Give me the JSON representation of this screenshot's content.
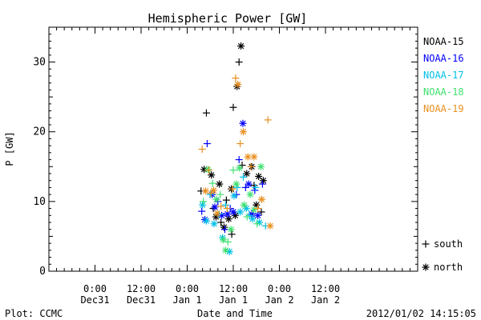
{
  "chart_data": {
    "type": "scatter",
    "title": "Hemispheric Power [GW]",
    "xlabel": "Date and Time",
    "ylabel": "P [GW]",
    "footer_left": "Plot: CCMC",
    "footer_right": "2012/01/02 14:15:05",
    "xlim_hours": [
      -36,
      60
    ],
    "ylim": [
      0,
      35
    ],
    "grid": false,
    "legend_position": "right",
    "x_ticks": [
      {
        "hours": -24,
        "line1": "0:00",
        "line2": "Dec31"
      },
      {
        "hours": -12,
        "line1": "12:00",
        "line2": "Dec31"
      },
      {
        "hours": 0,
        "line1": "0:00",
        "line2": "Jan 1"
      },
      {
        "hours": 12,
        "line1": "12:00",
        "line2": "Jan 1"
      },
      {
        "hours": 24,
        "line1": "0:00",
        "line2": "Jan 2"
      },
      {
        "hours": 36,
        "line1": "12:00",
        "line2": "Jan 2"
      }
    ],
    "y_ticks": [
      0,
      10,
      20,
      30
    ],
    "marker_legend": [
      {
        "symbol": "+",
        "label": "south"
      },
      {
        "symbol": "*",
        "label": "north"
      }
    ],
    "series": [
      {
        "name": "NOAA-15",
        "color": "#000000",
        "points": [
          {
            "x": 3.6,
            "y": 11.5,
            "m": "+"
          },
          {
            "x": 4.4,
            "y": 14.6,
            "m": "*"
          },
          {
            "x": 5.0,
            "y": 22.7,
            "m": "+"
          },
          {
            "x": 6.3,
            "y": 13.8,
            "m": "*"
          },
          {
            "x": 6.8,
            "y": 9.0,
            "m": "+"
          },
          {
            "x": 7.5,
            "y": 7.8,
            "m": "*"
          },
          {
            "x": 8.4,
            "y": 12.5,
            "m": "*"
          },
          {
            "x": 8.8,
            "y": 7.0,
            "m": "+"
          },
          {
            "x": 9.6,
            "y": 6.3,
            "m": "*"
          },
          {
            "x": 10.2,
            "y": 10.2,
            "m": "+"
          },
          {
            "x": 10.8,
            "y": 7.5,
            "m": "*"
          },
          {
            "x": 11.5,
            "y": 11.8,
            "m": "*"
          },
          {
            "x": 11.6,
            "y": 5.3,
            "m": "+"
          },
          {
            "x": 12.0,
            "y": 23.5,
            "m": "+"
          },
          {
            "x": 12.5,
            "y": 8.0,
            "m": "*"
          },
          {
            "x": 13.0,
            "y": 26.5,
            "m": "*"
          },
          {
            "x": 13.5,
            "y": 30.0,
            "m": "+"
          },
          {
            "x": 14.0,
            "y": 32.3,
            "m": "*"
          },
          {
            "x": 14.3,
            "y": 15.2,
            "m": "+"
          },
          {
            "x": 15.5,
            "y": 14.0,
            "m": "*"
          },
          {
            "x": 16.8,
            "y": 15.0,
            "m": "*"
          },
          {
            "x": 17.4,
            "y": 12.3,
            "m": "+"
          },
          {
            "x": 18.0,
            "y": 9.5,
            "m": "*"
          },
          {
            "x": 18.6,
            "y": 13.6,
            "m": "*"
          },
          {
            "x": 19.3,
            "y": 8.5,
            "m": "+"
          },
          {
            "x": 19.8,
            "y": 13.0,
            "m": "*"
          }
        ]
      },
      {
        "name": "NOAA-16",
        "color": "#0000ff",
        "points": [
          {
            "x": 3.8,
            "y": 8.6,
            "m": "+"
          },
          {
            "x": 4.6,
            "y": 7.4,
            "m": "*"
          },
          {
            "x": 5.2,
            "y": 18.3,
            "m": "+"
          },
          {
            "x": 6.5,
            "y": 11.0,
            "m": "*"
          },
          {
            "x": 7.2,
            "y": 9.2,
            "m": "*"
          },
          {
            "x": 8.0,
            "y": 10.0,
            "m": "+"
          },
          {
            "x": 9.0,
            "y": 8.0,
            "m": "*"
          },
          {
            "x": 9.8,
            "y": 6.0,
            "m": "+"
          },
          {
            "x": 10.5,
            "y": 8.2,
            "m": "*"
          },
          {
            "x": 11.2,
            "y": 9.0,
            "m": "+"
          },
          {
            "x": 12.0,
            "y": 8.5,
            "m": "*"
          },
          {
            "x": 12.8,
            "y": 11.0,
            "m": "+"
          },
          {
            "x": 13.5,
            "y": 16.0,
            "m": "+"
          },
          {
            "x": 14.5,
            "y": 21.2,
            "m": "*"
          },
          {
            "x": 15.2,
            "y": 12.0,
            "m": "+"
          },
          {
            "x": 16.0,
            "y": 12.5,
            "m": "*"
          },
          {
            "x": 16.8,
            "y": 8.2,
            "m": "*"
          },
          {
            "x": 17.6,
            "y": 11.6,
            "m": "+"
          },
          {
            "x": 18.4,
            "y": 8.0,
            "m": "*"
          },
          {
            "x": 19.6,
            "y": 12.5,
            "m": "+"
          }
        ]
      },
      {
        "name": "NOAA-17",
        "color": "#00c0e8",
        "points": [
          {
            "x": 4.0,
            "y": 9.5,
            "m": "*"
          },
          {
            "x": 5.0,
            "y": 7.2,
            "m": "*"
          },
          {
            "x": 6.0,
            "y": 11.0,
            "m": "+"
          },
          {
            "x": 7.0,
            "y": 6.8,
            "m": "*"
          },
          {
            "x": 8.3,
            "y": 8.2,
            "m": "+"
          },
          {
            "x": 9.2,
            "y": 4.8,
            "m": "*"
          },
          {
            "x": 10.0,
            "y": 9.5,
            "m": "+"
          },
          {
            "x": 11.0,
            "y": 2.8,
            "m": "*"
          },
          {
            "x": 12.2,
            "y": 10.8,
            "m": "*"
          },
          {
            "x": 13.0,
            "y": 12.0,
            "m": "+"
          },
          {
            "x": 13.8,
            "y": 8.5,
            "m": "*"
          },
          {
            "x": 14.6,
            "y": 13.5,
            "m": "+"
          },
          {
            "x": 15.4,
            "y": 9.0,
            "m": "*"
          },
          {
            "x": 16.2,
            "y": 8.0,
            "m": "+"
          },
          {
            "x": 17.0,
            "y": 7.5,
            "m": "*"
          },
          {
            "x": 17.8,
            "y": 12.0,
            "m": "+"
          },
          {
            "x": 18.8,
            "y": 7.0,
            "m": "*"
          },
          {
            "x": 20.4,
            "y": 6.5,
            "m": "+"
          }
        ]
      },
      {
        "name": "NOAA-18",
        "color": "#40e070",
        "points": [
          {
            "x": 4.2,
            "y": 10.0,
            "m": "+"
          },
          {
            "x": 5.4,
            "y": 14.6,
            "m": "*"
          },
          {
            "x": 6.6,
            "y": 12.6,
            "m": "+"
          },
          {
            "x": 7.6,
            "y": 10.3,
            "m": "*"
          },
          {
            "x": 8.6,
            "y": 11.0,
            "m": "+"
          },
          {
            "x": 9.4,
            "y": 4.5,
            "m": "*"
          },
          {
            "x": 10.0,
            "y": 3.0,
            "m": "*"
          },
          {
            "x": 10.6,
            "y": 4.2,
            "m": "+"
          },
          {
            "x": 11.4,
            "y": 6.0,
            "m": "*"
          },
          {
            "x": 12.0,
            "y": 14.5,
            "m": "+"
          },
          {
            "x": 12.8,
            "y": 12.5,
            "m": "*"
          },
          {
            "x": 13.6,
            "y": 14.8,
            "m": "*"
          },
          {
            "x": 14.8,
            "y": 9.5,
            "m": "*"
          },
          {
            "x": 15.6,
            "y": 7.8,
            "m": "+"
          },
          {
            "x": 16.4,
            "y": 11.0,
            "m": "*"
          },
          {
            "x": 17.4,
            "y": 8.8,
            "m": "*"
          },
          {
            "x": 18.2,
            "y": 6.8,
            "m": "+"
          },
          {
            "x": 19.2,
            "y": 15.0,
            "m": "*"
          }
        ]
      },
      {
        "name": "NOAA-19",
        "color": "#e89020",
        "points": [
          {
            "x": 3.9,
            "y": 17.5,
            "m": "+"
          },
          {
            "x": 4.8,
            "y": 11.5,
            "m": "*"
          },
          {
            "x": 5.6,
            "y": 14.5,
            "m": "+"
          },
          {
            "x": 6.2,
            "y": 11.2,
            "m": "+"
          },
          {
            "x": 6.9,
            "y": 11.6,
            "m": "*"
          },
          {
            "x": 7.8,
            "y": 8.3,
            "m": "*"
          },
          {
            "x": 8.8,
            "y": 9.3,
            "m": "+"
          },
          {
            "x": 10.4,
            "y": 9.0,
            "m": "+"
          },
          {
            "x": 11.8,
            "y": 11.8,
            "m": "+"
          },
          {
            "x": 12.6,
            "y": 27.7,
            "m": "+"
          },
          {
            "x": 13.2,
            "y": 26.8,
            "m": "*"
          },
          {
            "x": 13.8,
            "y": 18.3,
            "m": "+"
          },
          {
            "x": 14.6,
            "y": 20.0,
            "m": "*"
          },
          {
            "x": 15.8,
            "y": 16.4,
            "m": "*"
          },
          {
            "x": 16.6,
            "y": 15.0,
            "m": "+"
          },
          {
            "x": 17.4,
            "y": 16.4,
            "m": "*"
          },
          {
            "x": 18.4,
            "y": 9.0,
            "m": "+"
          },
          {
            "x": 19.4,
            "y": 10.3,
            "m": "*"
          },
          {
            "x": 21.0,
            "y": 21.7,
            "m": "+"
          },
          {
            "x": 21.6,
            "y": 6.5,
            "m": "*"
          }
        ]
      }
    ]
  }
}
